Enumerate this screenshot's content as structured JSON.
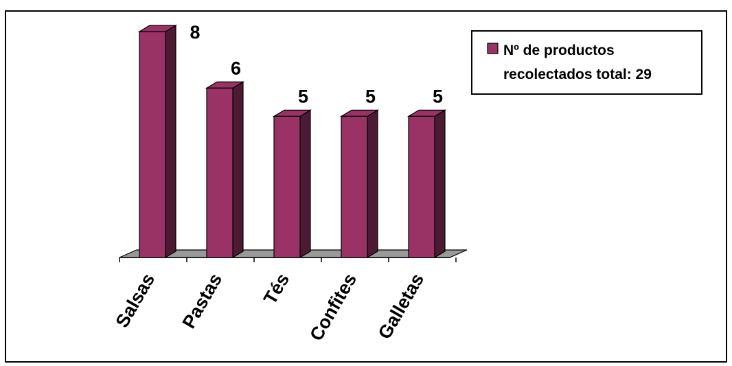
{
  "chart_data": {
    "type": "bar",
    "style": "3d-column",
    "categories": [
      "Salsas",
      "Pastas",
      "Tés",
      "Confites",
      "Galletas"
    ],
    "series": [
      {
        "name": "Nº de productos recolectados total: 29",
        "values": [
          8,
          6,
          5,
          5,
          5
        ],
        "color": "#993366"
      }
    ],
    "legend": {
      "position": "top-right",
      "lines": [
        "Nº de productos",
        "recolectados total: 29"
      ]
    },
    "ylim": [
      0,
      8
    ],
    "grid": false,
    "data_labels": true,
    "x_tick_rotation": "diagonal"
  },
  "colors": {
    "bar_front": "#993366",
    "bar_side": "#4d1a33",
    "bar_top": "#993366",
    "floor": "#999999",
    "frame": "#000000"
  }
}
